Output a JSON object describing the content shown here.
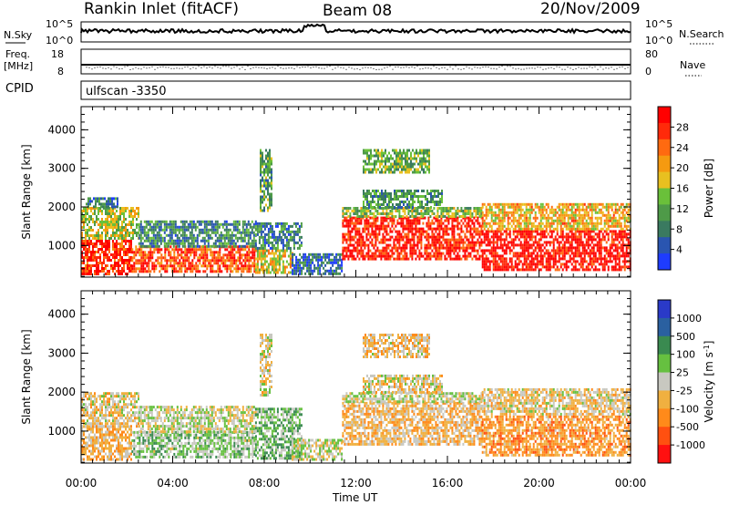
{
  "header": {
    "station": "Rankin Inlet (fitACF)",
    "beam": "Beam 08",
    "date": "20/Nov/2009"
  },
  "top_panels": {
    "nsky_label": "N.Sky",
    "nsearch_label": "N.Search",
    "exp_hi": "10^5",
    "exp_lo": "10^0",
    "freq_label": "Freq.",
    "freq_unit": "[MHz]",
    "freq_ticks": [
      "18",
      "8"
    ],
    "nave_label": "Nave",
    "nave_ticks": [
      "80",
      "0"
    ],
    "cpid_label": "CPID",
    "cpid_value": "ulfscan -3350"
  },
  "colors": {
    "power_scale": [
      "#1e3cff",
      "#2a55b0",
      "#3a7a60",
      "#4e9a48",
      "#6ac03a",
      "#e8c020",
      "#f59a10",
      "#ff6a10",
      "#ff2a0a",
      "#ff0000"
    ],
    "velocity_scale": [
      "#2a3ac8",
      "#2a60a0",
      "#3a8a50",
      "#66c040",
      "#c8c8c0",
      "#f0b040",
      "#ff8a1a",
      "#ff5010",
      "#ff1010"
    ]
  },
  "chart_data": [
    {
      "type": "heatmap",
      "name": "power",
      "ylabel": "Slant Range [km]",
      "xlabel": "",
      "x_ticks": [
        "00:00",
        "04:00",
        "08:00",
        "12:00",
        "16:00",
        "20:00",
        "00:00"
      ],
      "xlim_hours": [
        0,
        24
      ],
      "y_ticks": [
        "1000",
        "2000",
        "3000",
        "4000"
      ],
      "ylim": [
        180,
        4600
      ],
      "colorbar": {
        "label": "Power [dB]",
        "ticks": [
          "4",
          "8",
          "12",
          "16",
          "20",
          "24",
          "28"
        ],
        "range": [
          0,
          32
        ]
      },
      "echo_regions": [
        {
          "t0": 0.0,
          "t1": 2.2,
          "r0": 250,
          "r1": 1150,
          "v": 28
        },
        {
          "t0": 0.0,
          "t1": 2.5,
          "r0": 1150,
          "r1": 2000,
          "v": 16
        },
        {
          "t0": 2.2,
          "t1": 7.6,
          "r0": 300,
          "r1": 1000,
          "v": 26
        },
        {
          "t0": 2.5,
          "t1": 7.6,
          "r0": 1000,
          "r1": 1650,
          "v": 9
        },
        {
          "t0": 7.6,
          "t1": 9.2,
          "r0": 300,
          "r1": 900,
          "v": 18
        },
        {
          "t0": 7.6,
          "t1": 9.6,
          "r0": 900,
          "r1": 1600,
          "v": 8
        },
        {
          "t0": 9.2,
          "t1": 11.4,
          "r0": 300,
          "r1": 800,
          "v": 6
        },
        {
          "t0": 11.4,
          "t1": 17.5,
          "r0": 650,
          "r1": 1750,
          "v": 29
        },
        {
          "t0": 11.4,
          "t1": 17.5,
          "r0": 1750,
          "r1": 2000,
          "v": 14
        },
        {
          "t0": 17.5,
          "t1": 24.0,
          "r0": 400,
          "r1": 1400,
          "v": 30
        },
        {
          "t0": 17.5,
          "t1": 24.0,
          "r0": 1400,
          "r1": 2100,
          "v": 20
        },
        {
          "t0": 12.3,
          "t1": 15.8,
          "r0": 2000,
          "r1": 2450,
          "v": 10
        },
        {
          "t0": 12.3,
          "t1": 15.2,
          "r0": 2900,
          "r1": 3500,
          "v": 13
        },
        {
          "t0": 7.8,
          "t1": 8.3,
          "r0": 1900,
          "r1": 3500,
          "v": 11
        },
        {
          "t0": 0.2,
          "t1": 1.6,
          "r0": 2000,
          "r1": 2250,
          "v": 7
        }
      ]
    },
    {
      "type": "heatmap",
      "name": "velocity",
      "ylabel": "Slant Range [km]",
      "xlabel": "Time UT",
      "x_ticks": [
        "00:00",
        "04:00",
        "08:00",
        "12:00",
        "16:00",
        "20:00",
        "00:00"
      ],
      "xlim_hours": [
        0,
        24
      ],
      "y_ticks": [
        "1000",
        "2000",
        "3000",
        "4000"
      ],
      "ylim": [
        180,
        4600
      ],
      "colorbar": {
        "label": "Velocity [m s^-1]",
        "ticks": [
          "1000",
          "500",
          "100",
          "25",
          "-25",
          "-100",
          "-500",
          "-1000"
        ],
        "range": [
          -1200,
          1200
        ]
      },
      "echo_regions": [
        {
          "t0": 0.0,
          "t1": 2.2,
          "r0": 250,
          "r1": 1150,
          "v": -300
        },
        {
          "t0": 0.0,
          "t1": 2.5,
          "r0": 1150,
          "r1": 2000,
          "v": -120
        },
        {
          "t0": 2.2,
          "t1": 7.6,
          "r0": 300,
          "r1": 1000,
          "v": 200
        },
        {
          "t0": 2.5,
          "t1": 7.6,
          "r0": 1000,
          "r1": 1650,
          "v": 0
        },
        {
          "t0": 7.6,
          "t1": 9.6,
          "r0": 300,
          "r1": 1600,
          "v": 300
        },
        {
          "t0": 9.2,
          "t1": 11.4,
          "r0": 300,
          "r1": 800,
          "v": 50
        },
        {
          "t0": 11.4,
          "t1": 17.5,
          "r0": 650,
          "r1": 1750,
          "v": -250
        },
        {
          "t0": 11.4,
          "t1": 17.5,
          "r0": 1750,
          "r1": 2000,
          "v": 0
        },
        {
          "t0": 17.5,
          "t1": 24.0,
          "r0": 400,
          "r1": 1400,
          "v": -450
        },
        {
          "t0": 17.5,
          "t1": 24.0,
          "r0": 1400,
          "r1": 2100,
          "v": -150
        },
        {
          "t0": 12.3,
          "t1": 15.8,
          "r0": 2000,
          "r1": 2450,
          "v": -100
        },
        {
          "t0": 12.3,
          "t1": 15.2,
          "r0": 2900,
          "r1": 3500,
          "v": -200
        },
        {
          "t0": 7.8,
          "t1": 8.3,
          "r0": 1900,
          "r1": 3500,
          "v": -80
        }
      ]
    }
  ]
}
